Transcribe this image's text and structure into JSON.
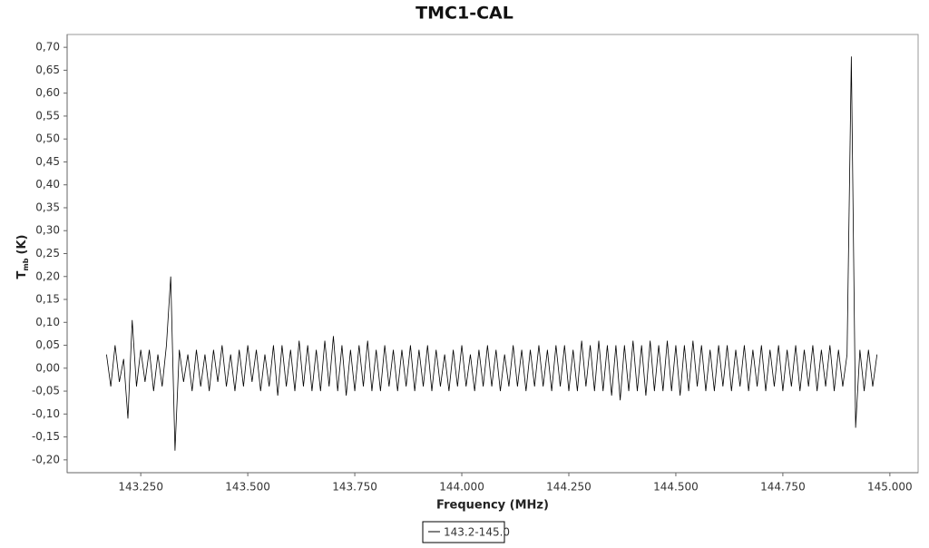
{
  "chart_data": {
    "type": "line",
    "title": "TMC1-CAL",
    "xlabel": "Frequency (MHz)",
    "ylabel": "T",
    "ylabel_sub": "mb",
    "ylabel_unit": "(K)",
    "xlim": [
      143.078,
      145.066
    ],
    "ylim": [
      -0.228,
      0.728
    ],
    "xticks": [
      {
        "value": 143.25,
        "label": "143.250"
      },
      {
        "value": 143.5,
        "label": "143.500"
      },
      {
        "value": 143.75,
        "label": "143.750"
      },
      {
        "value": 144,
        "label": "144.000"
      },
      {
        "value": 144.25,
        "label": "144.250"
      },
      {
        "value": 144.5,
        "label": "144.500"
      },
      {
        "value": 144.75,
        "label": "144.750"
      },
      {
        "value": 145,
        "label": "145.000"
      }
    ],
    "yticks": [
      {
        "value": -0.2,
        "label": "-0,20"
      },
      {
        "value": -0.15,
        "label": "-0,15"
      },
      {
        "value": -0.1,
        "label": "-0,10"
      },
      {
        "value": -0.05,
        "label": "-0,05"
      },
      {
        "value": 0,
        "label": "0,00"
      },
      {
        "value": 0.05,
        "label": "0,05"
      },
      {
        "value": 0.1,
        "label": "0,10"
      },
      {
        "value": 0.15,
        "label": "0,15"
      },
      {
        "value": 0.2,
        "label": "0,20"
      },
      {
        "value": 0.25,
        "label": "0,25"
      },
      {
        "value": 0.3,
        "label": "0,30"
      },
      {
        "value": 0.35,
        "label": "0,35"
      },
      {
        "value": 0.4,
        "label": "0,40"
      },
      {
        "value": 0.45,
        "label": "0,45"
      },
      {
        "value": 0.5,
        "label": "0,50"
      },
      {
        "value": 0.55,
        "label": "0,55"
      },
      {
        "value": 0.6,
        "label": "0,60"
      },
      {
        "value": 0.65,
        "label": "0,65"
      },
      {
        "value": 0.7,
        "label": "0,70"
      }
    ],
    "x": [
      143.17,
      143.18,
      143.19,
      143.2,
      143.21,
      143.22,
      143.23,
      143.24,
      143.25,
      143.26,
      143.27,
      143.28,
      143.29,
      143.3,
      143.31,
      143.32,
      143.33,
      143.34,
      143.35,
      143.36,
      143.37,
      143.38,
      143.39,
      143.4,
      143.41,
      143.42,
      143.43,
      143.44,
      143.45,
      143.46,
      143.47,
      143.48,
      143.49,
      143.5,
      143.51,
      143.52,
      143.53,
      143.54,
      143.55,
      143.56,
      143.57,
      143.58,
      143.59,
      143.6,
      143.61,
      143.62,
      143.63,
      143.64,
      143.65,
      143.66,
      143.67,
      143.68,
      143.69,
      143.7,
      143.71,
      143.72,
      143.73,
      143.74,
      143.75,
      143.76,
      143.77,
      143.78,
      143.79,
      143.8,
      143.81,
      143.82,
      143.83,
      143.84,
      143.85,
      143.86,
      143.87,
      143.88,
      143.89,
      143.9,
      143.91,
      143.92,
      143.93,
      143.94,
      143.95,
      143.96,
      143.97,
      143.98,
      143.99,
      144,
      144.01,
      144.02,
      144.03,
      144.04,
      144.05,
      144.06,
      144.07,
      144.08,
      144.09,
      144.1,
      144.11,
      144.12,
      144.13,
      144.14,
      144.15,
      144.16,
      144.17,
      144.18,
      144.19,
      144.2,
      144.21,
      144.22,
      144.23,
      144.24,
      144.25,
      144.26,
      144.27,
      144.28,
      144.29,
      144.3,
      144.31,
      144.32,
      144.33,
      144.34,
      144.35,
      144.36,
      144.37,
      144.38,
      144.39,
      144.4,
      144.41,
      144.42,
      144.43,
      144.44,
      144.45,
      144.46,
      144.47,
      144.48,
      144.49,
      144.5,
      144.51,
      144.52,
      144.53,
      144.54,
      144.55,
      144.56,
      144.57,
      144.58,
      144.59,
      144.6,
      144.61,
      144.62,
      144.63,
      144.64,
      144.65,
      144.66,
      144.67,
      144.68,
      144.69,
      144.7,
      144.71,
      144.72,
      144.73,
      144.74,
      144.75,
      144.76,
      144.77,
      144.78,
      144.79,
      144.8,
      144.81,
      144.82,
      144.83,
      144.84,
      144.85,
      144.86,
      144.87,
      144.88,
      144.89,
      144.9,
      144.91,
      144.92,
      144.93,
      144.94,
      144.95,
      144.96,
      144.97
    ],
    "series": [
      {
        "name": "143.2-145.0",
        "color": "#000000",
        "values": [
          0.03,
          -0.04,
          0.05,
          -0.03,
          0.02,
          -0.11,
          0.105,
          -0.04,
          0.04,
          -0.03,
          0.04,
          -0.05,
          0.03,
          -0.04,
          0.05,
          0.2,
          -0.18,
          0.04,
          -0.03,
          0.03,
          -0.05,
          0.04,
          -0.04,
          0.03,
          -0.05,
          0.04,
          -0.03,
          0.05,
          -0.04,
          0.03,
          -0.05,
          0.04,
          -0.04,
          0.05,
          -0.03,
          0.04,
          -0.05,
          0.03,
          -0.04,
          0.05,
          -0.06,
          0.05,
          -0.04,
          0.04,
          -0.05,
          0.06,
          -0.04,
          0.05,
          -0.05,
          0.04,
          -0.05,
          0.06,
          -0.04,
          0.07,
          -0.05,
          0.05,
          -0.06,
          0.04,
          -0.05,
          0.05,
          -0.04,
          0.06,
          -0.05,
          0.04,
          -0.05,
          0.05,
          -0.04,
          0.04,
          -0.05,
          0.04,
          -0.04,
          0.05,
          -0.05,
          0.04,
          -0.04,
          0.05,
          -0.05,
          0.04,
          -0.04,
          0.03,
          -0.05,
          0.04,
          -0.04,
          0.05,
          -0.04,
          0.03,
          -0.05,
          0.04,
          -0.04,
          0.05,
          -0.04,
          0.04,
          -0.05,
          0.03,
          -0.04,
          0.05,
          -0.04,
          0.04,
          -0.05,
          0.04,
          -0.04,
          0.05,
          -0.04,
          0.04,
          -0.05,
          0.05,
          -0.04,
          0.05,
          -0.05,
          0.04,
          -0.05,
          0.06,
          -0.04,
          0.05,
          -0.05,
          0.06,
          -0.05,
          0.05,
          -0.06,
          0.05,
          -0.07,
          0.05,
          -0.05,
          0.06,
          -0.05,
          0.05,
          -0.06,
          0.06,
          -0.05,
          0.05,
          -0.05,
          0.06,
          -0.05,
          0.05,
          -0.06,
          0.05,
          -0.05,
          0.06,
          -0.04,
          0.05,
          -0.05,
          0.04,
          -0.05,
          0.05,
          -0.04,
          0.05,
          -0.05,
          0.04,
          -0.04,
          0.05,
          -0.05,
          0.04,
          -0.04,
          0.05,
          -0.05,
          0.04,
          -0.04,
          0.05,
          -0.05,
          0.04,
          -0.04,
          0.05,
          -0.05,
          0.04,
          -0.04,
          0.05,
          -0.05,
          0.04,
          -0.04,
          0.05,
          -0.05,
          0.04,
          -0.04,
          0.03,
          0.68,
          -0.13,
          0.04,
          -0.05,
          0.04,
          -0.04,
          0.03
        ]
      }
    ]
  }
}
